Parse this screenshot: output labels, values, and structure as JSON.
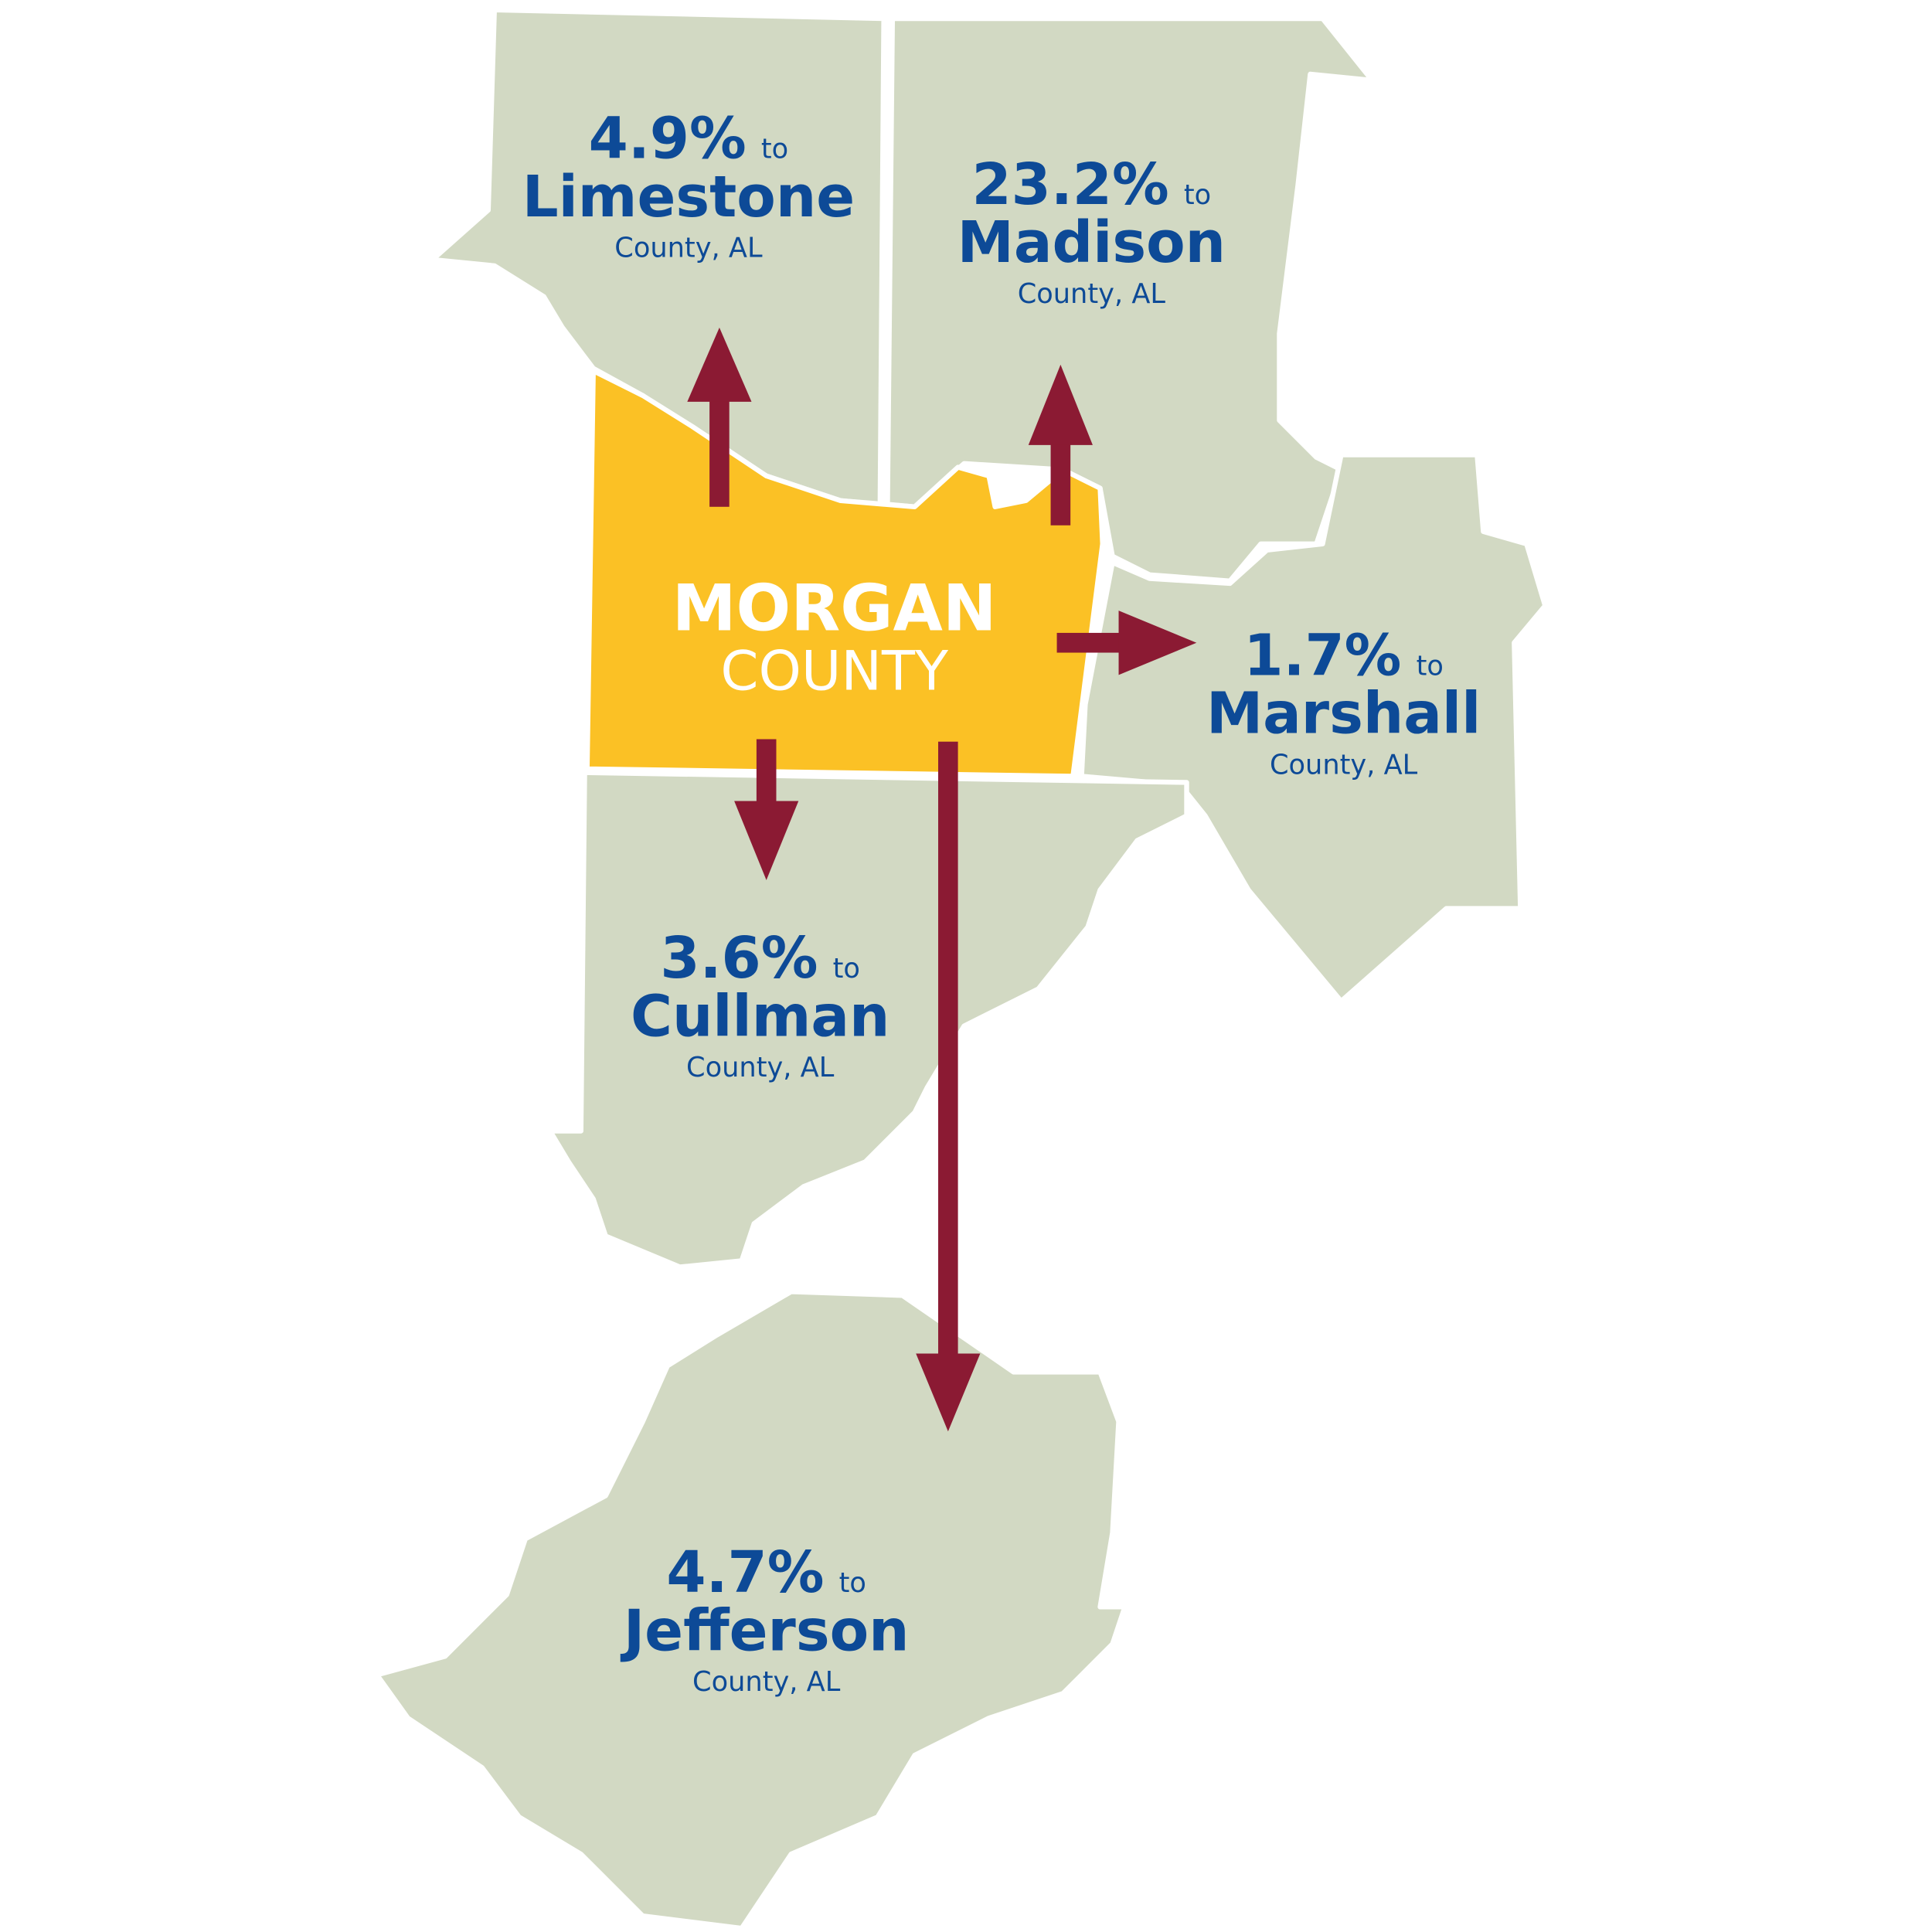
{
  "center": {
    "name": "MORGAN",
    "kind": "COUNTY"
  },
  "destinations": [
    {
      "share": "4.9%",
      "to": "to",
      "county": "Limestone",
      "state": "County, AL"
    },
    {
      "share": "23.2%",
      "to": "to",
      "county": "Madison",
      "state": "County, AL"
    },
    {
      "share": "1.7%",
      "to": "to",
      "county": "Marshall",
      "state": "County, AL"
    },
    {
      "share": "3.6%",
      "to": "to",
      "county": "Cullman",
      "state": "County, AL"
    },
    {
      "share": "4.7%",
      "to": "to",
      "county": "Jefferson",
      "state": "County, AL"
    }
  ]
}
